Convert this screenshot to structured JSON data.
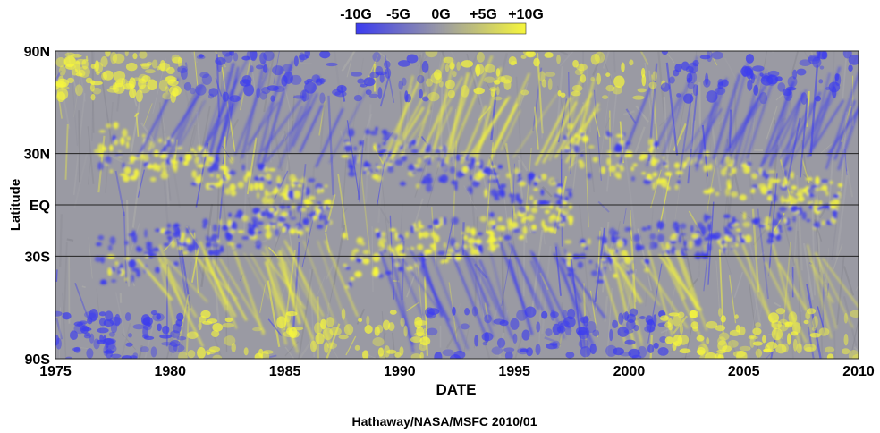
{
  "chart_data": {
    "type": "heatmap",
    "title": "",
    "xlabel": "DATE",
    "ylabel": "Latitude",
    "credit": "Hathaway/NASA/MSFC 2010/01",
    "xlim": [
      1975,
      2010
    ],
    "ylim": [
      -90,
      90
    ],
    "x_ticks": [
      {
        "value": 1975,
        "label": "1975"
      },
      {
        "value": 1980,
        "label": "1980"
      },
      {
        "value": 1985,
        "label": "1985"
      },
      {
        "value": 1990,
        "label": "1990"
      },
      {
        "value": 1995,
        "label": "1995"
      },
      {
        "value": 2000,
        "label": "2000"
      },
      {
        "value": 2005,
        "label": "2005"
      },
      {
        "value": 2010,
        "label": "2010"
      }
    ],
    "y_ticks": [
      {
        "value": 90,
        "label": "90N"
      },
      {
        "value": 30,
        "label": "30N"
      },
      {
        "value": 0,
        "label": "EQ"
      },
      {
        "value": -30,
        "label": "30S"
      },
      {
        "value": -90,
        "label": "90S"
      }
    ],
    "gridlines_lat": [
      30,
      0,
      -30
    ],
    "colorbar": {
      "range": [
        -10,
        10
      ],
      "units": "G",
      "ticks": [
        {
          "value": -10,
          "label": "-10G"
        },
        {
          "value": -5,
          "label": "-5G"
        },
        {
          "value": 0,
          "label": "0G"
        },
        {
          "value": 5,
          "label": "+5G"
        },
        {
          "value": 10,
          "label": "+10G"
        }
      ],
      "colors": {
        "negative": "#3c3cf0",
        "zero": "#9a9aa3",
        "positive": "#f6f63c"
      }
    }
  }
}
